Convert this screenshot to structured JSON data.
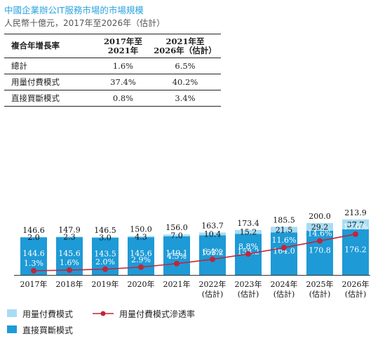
{
  "header": {
    "title": "中國企業辦公IT服務市場的市場規模",
    "subtitle": "人民幣十億元，2017年至2026年（估計）"
  },
  "cagr_table": {
    "header": [
      "複合年增長率",
      "2017年至\n2021年",
      "2021年至\n2026年（估計）"
    ],
    "rows": [
      [
        "總計",
        "1.6%",
        "6.5%"
      ],
      [
        "用量付費模式",
        "37.4%",
        "40.2%"
      ],
      [
        "直接買斷模式",
        "0.8%",
        "3.4%"
      ]
    ]
  },
  "legend": {
    "usage": "用量付費模式",
    "penetration": "用量付費模式滲透率",
    "buyout": "直接買斷模式"
  },
  "colors": {
    "buyout": "#1e9ad6",
    "usage": "#a8dcf4",
    "line": "#c0263a",
    "title": "#2aa3df"
  },
  "chart_data": {
    "type": "bar",
    "stacked": true,
    "categories": [
      "2017年",
      "2018年",
      "2019年",
      "2020年",
      "2021年",
      "2022年\n(估計)",
      "2023年\n(估計)",
      "2024年\n(估計)",
      "2025年\n(估計)",
      "2026年\n(估計)"
    ],
    "series": [
      {
        "name": "直接買斷模式",
        "values": [
          144.6,
          145.6,
          143.5,
          145.6,
          149.1,
          153.2,
          158.2,
          164.0,
          170.8,
          176.2
        ]
      },
      {
        "name": "用量付費模式",
        "values": [
          2.0,
          2.3,
          3.0,
          4.3,
          7.0,
          10.4,
          15.2,
          21.5,
          29.2,
          37.7
        ]
      }
    ],
    "totals": [
      146.6,
      147.9,
      146.5,
      150.0,
      156.0,
      163.7,
      173.4,
      185.5,
      200.0,
      213.9
    ],
    "line": {
      "name": "用量付費模式滲透率",
      "values": [
        1.3,
        1.6,
        2.0,
        2.9,
        4.5,
        6.4,
        8.8,
        11.6,
        14.6,
        17.6
      ]
    },
    "ylim": [
      0,
      214
    ],
    "grid": false,
    "legend_position": "bottom-left"
  }
}
